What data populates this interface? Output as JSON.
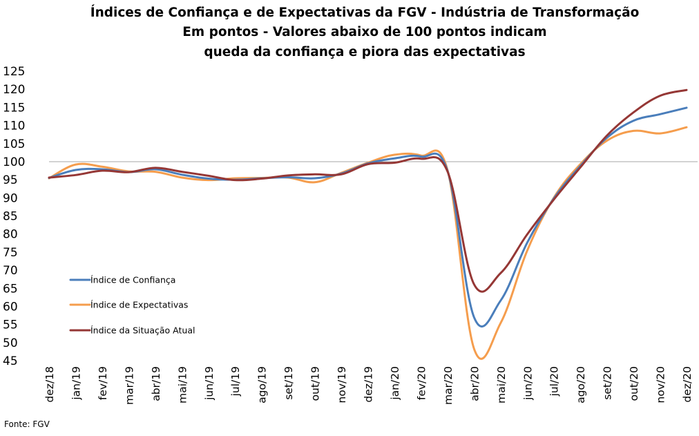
{
  "chart_data": {
    "type": "line",
    "title": [
      "Índices de Confiança e de Expectativas da FGV - Indústria de Transformação",
      "Em pontos - Valores abaixo de 100 pontos indicam",
      "queda da confiança e piora das expectativas"
    ],
    "xlabel": "",
    "ylabel": "",
    "ylim": [
      45,
      125
    ],
    "yticks": [
      "125",
      "120",
      "115",
      "110",
      "105",
      "100",
      "95",
      "90",
      "85",
      "80",
      "75",
      "70",
      "65",
      "60",
      "55",
      "50",
      "45"
    ],
    "reference_line": 100,
    "grid": false,
    "legend_position": "left",
    "categories": [
      "dez/18",
      "jan/19",
      "fev/19",
      "mar/19",
      "abr/19",
      "mai/19",
      "jun/19",
      "jul/19",
      "ago/19",
      "set/19",
      "out/19",
      "nov/19",
      "dez/19",
      "jan/20",
      "fev/20",
      "mar/20",
      "abr/20",
      "mai/20",
      "jun/20",
      "jul/20",
      "ago/20",
      "set/20",
      "out/20",
      "nov/20",
      "dez/20"
    ],
    "series": [
      {
        "name": "Índice de Confiança",
        "color": "#4a7ebb",
        "values": [
          95.5,
          97.7,
          97.9,
          97.1,
          97.9,
          96.4,
          95.3,
          95.0,
          95.4,
          95.7,
          95.4,
          96.7,
          99.5,
          100.9,
          101.4,
          97.5,
          57.0,
          61.6,
          77.6,
          89.8,
          98.8,
          106.6,
          111.3,
          113.1,
          114.9
        ]
      },
      {
        "name": "Índice de Expectativas",
        "color": "#f59d4d",
        "values": [
          95.4,
          99.2,
          98.6,
          97.3,
          97.2,
          95.6,
          94.9,
          95.4,
          95.5,
          95.6,
          94.3,
          96.9,
          99.7,
          101.9,
          101.7,
          97.7,
          48.3,
          55.4,
          75.4,
          90.0,
          99.3,
          105.8,
          108.5,
          107.8,
          109.5
        ]
      },
      {
        "name": "Índice da Situação Atual",
        "color": "#953735",
        "values": [
          95.6,
          96.3,
          97.5,
          97.1,
          98.3,
          97.2,
          96.1,
          94.9,
          95.3,
          96.2,
          96.5,
          96.5,
          99.3,
          99.7,
          100.8,
          97.3,
          66.1,
          69.2,
          79.9,
          89.5,
          98.4,
          107.2,
          113.6,
          118.2,
          119.8
        ]
      }
    ],
    "source_note": "Fonte: FGV"
  }
}
